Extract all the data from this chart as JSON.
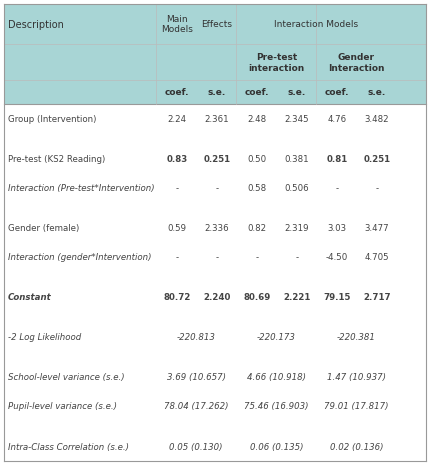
{
  "header_bg": "#a8d5d5",
  "white_bg": "#ffffff",
  "border_color": "#bbbbbb",
  "header_text_color": "#333333",
  "body_text_color": "#444444",
  "figsize": [
    4.28,
    4.64
  ],
  "dpi": 100,
  "rows": [
    {
      "desc": "Group (Intervention)",
      "vals": [
        "2.24",
        "2.361",
        "2.48",
        "2.345",
        "4.76",
        "3.482"
      ],
      "italic": false,
      "bold_cols": [],
      "merged": false
    },
    {
      "desc": "",
      "vals": [
        "",
        "",
        "",
        "",
        "",
        ""
      ],
      "italic": false,
      "bold_cols": [],
      "merged": false
    },
    {
      "desc": "Pre-test (KS2 Reading)",
      "vals": [
        "0.83",
        "0.251",
        "0.50",
        "0.381",
        "0.81",
        "0.251"
      ],
      "italic": false,
      "bold_cols": [
        0,
        1,
        4,
        5
      ],
      "merged": false
    },
    {
      "desc": "Interaction (Pre-test*Intervention)",
      "vals": [
        "-",
        "-",
        "0.58",
        "0.506",
        "-",
        "-"
      ],
      "italic": true,
      "bold_cols": [],
      "merged": false
    },
    {
      "desc": "",
      "vals": [
        "",
        "",
        "",
        "",
        "",
        ""
      ],
      "italic": false,
      "bold_cols": [],
      "merged": false
    },
    {
      "desc": "Gender (female)",
      "vals": [
        "0.59",
        "2.336",
        "0.82",
        "2.319",
        "3.03",
        "3.477"
      ],
      "italic": false,
      "bold_cols": [],
      "merged": false
    },
    {
      "desc": "Interaction (gender*Intervention)",
      "vals": [
        "-",
        "-",
        "-",
        "-",
        "-4.50",
        "4.705"
      ],
      "italic": true,
      "bold_cols": [],
      "merged": false
    },
    {
      "desc": "",
      "vals": [
        "",
        "",
        "",
        "",
        "",
        ""
      ],
      "italic": false,
      "bold_cols": [],
      "merged": false
    },
    {
      "desc": "Constant",
      "vals": [
        "80.72",
        "2.240",
        "80.69",
        "2.221",
        "79.15",
        "2.717"
      ],
      "italic": true,
      "bold_cols": [
        0,
        1,
        2,
        3,
        4,
        5
      ],
      "merged": false
    },
    {
      "desc": "",
      "vals": [
        "",
        "",
        "",
        "",
        "",
        ""
      ],
      "italic": false,
      "bold_cols": [],
      "merged": false
    },
    {
      "desc": "-2 Log Likelihood",
      "vals": [
        "-220.813",
        "",
        "-220.173",
        "",
        "-220.381",
        ""
      ],
      "italic": true,
      "bold_cols": [],
      "merged": true
    },
    {
      "desc": "",
      "vals": [
        "",
        "",
        "",
        "",
        "",
        ""
      ],
      "italic": false,
      "bold_cols": [],
      "merged": false
    },
    {
      "desc": "School-level variance (s.e.)",
      "vals": [
        "3.69 (10.657)",
        "",
        "4.66 (10.918)",
        "",
        "1.47 (10.937)",
        ""
      ],
      "italic": true,
      "bold_cols": [],
      "merged": true
    },
    {
      "desc": "Pupil-level variance (s.e.)",
      "vals": [
        "78.04 (17.262)",
        "",
        "75.46 (16.903)",
        "",
        "79.01 (17.817)",
        ""
      ],
      "italic": true,
      "bold_cols": [],
      "merged": true
    },
    {
      "desc": "",
      "vals": [
        "",
        "",
        "",
        "",
        "",
        ""
      ],
      "italic": false,
      "bold_cols": [],
      "merged": false
    },
    {
      "desc": "Intra-Class Correlation (s.e.)",
      "vals": [
        "0.05 (0.130)",
        "",
        "0.06 (0.135)",
        "",
        "0.02 (0.136)",
        ""
      ],
      "italic": true,
      "bold_cols": [],
      "merged": true
    }
  ]
}
